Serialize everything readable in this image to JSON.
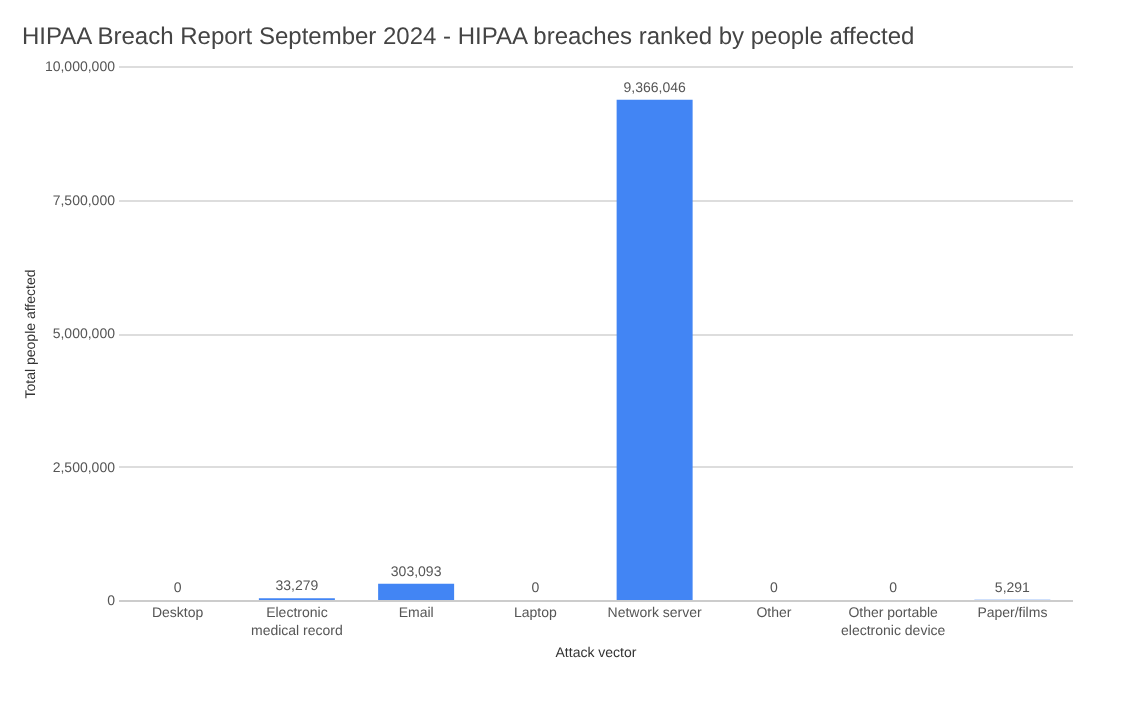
{
  "chart_data": {
    "type": "bar",
    "title": "HIPAA Breach Report September 2024 - HIPAA breaches ranked by people affected",
    "xlabel": "Attack vector",
    "ylabel": "Total people affected",
    "categories": [
      "Desktop",
      "Electronic medical record",
      "Email",
      "Laptop",
      "Network server",
      "Other",
      "Other portable electronic device",
      "Paper/films"
    ],
    "values": [
      0,
      33279,
      303093,
      0,
      9366046,
      0,
      0,
      5291
    ],
    "color": "#4285f4",
    "value_labels": [
      "0",
      "33,279",
      "303,093",
      "0",
      "9,366,046",
      "0",
      "0",
      "5,291"
    ],
    "ylim": [
      0,
      10000000
    ],
    "yticks": [
      0,
      {
        "value": 2500000,
        "label": "2,500,000"
      },
      {
        "value": 5000000,
        "label": "5,000,000"
      },
      {
        "value": 7500000,
        "label": "7,500,000"
      },
      {
        "value": 10000000,
        "label": "10,000,000"
      }
    ],
    "grid": "y"
  }
}
